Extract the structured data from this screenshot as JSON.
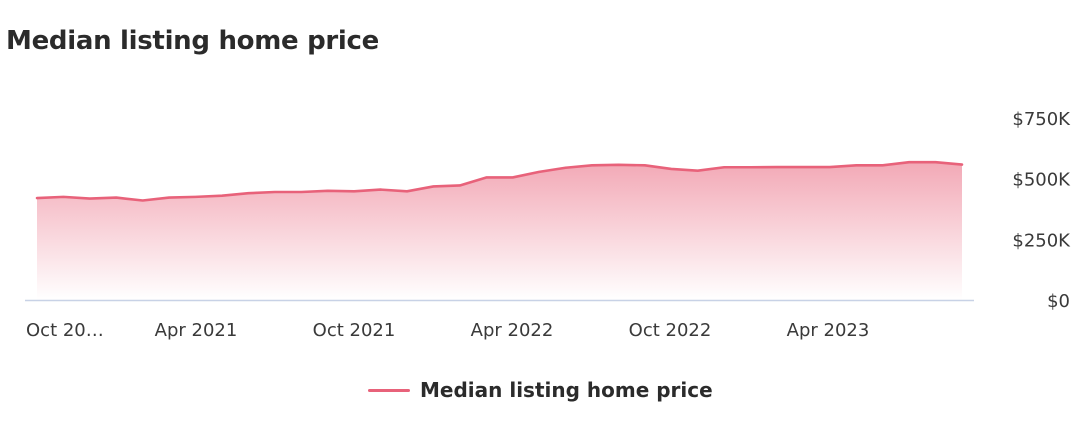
{
  "page": {
    "title": "Median listing home price"
  },
  "colors": {
    "line": "#e8627a",
    "axis": "#c8d2e6",
    "text": "#2b2b2b"
  },
  "chart_data": {
    "type": "area",
    "title": "Median listing home price",
    "xlabel": "",
    "ylabel": "",
    "ylim": [
      0,
      750000
    ],
    "y_ticks": [
      {
        "value": 750000,
        "label": "$750K"
      },
      {
        "value": 500000,
        "label": "$500K"
      },
      {
        "value": 250000,
        "label": "$250K"
      },
      {
        "value": 0,
        "label": "$0"
      }
    ],
    "x_ticks": [
      {
        "index": 0,
        "label": "Oct 20…"
      },
      {
        "index": 6,
        "label": "Apr 2021"
      },
      {
        "index": 12,
        "label": "Oct 2021"
      },
      {
        "index": 18,
        "label": "Apr 2022"
      },
      {
        "index": 24,
        "label": "Oct 2022"
      },
      {
        "index": 30,
        "label": "Apr 2023"
      }
    ],
    "grid": false,
    "legend_position": "bottom-center",
    "series": [
      {
        "name": "Median listing home price",
        "x": [
          "Oct 2020",
          "Nov 2020",
          "Dec 2020",
          "Jan 2021",
          "Feb 2021",
          "Mar 2021",
          "Apr 2021",
          "May 2021",
          "Jun 2021",
          "Jul 2021",
          "Aug 2021",
          "Sep 2021",
          "Oct 2021",
          "Nov 2021",
          "Dec 2021",
          "Jan 2022",
          "Feb 2022",
          "Mar 2022",
          "Apr 2022",
          "May 2022",
          "Jun 2022",
          "Jul 2022",
          "Aug 2022",
          "Sep 2022",
          "Oct 2022",
          "Nov 2022",
          "Dec 2022",
          "Jan 2023",
          "Feb 2023",
          "Mar 2023",
          "Apr 2023",
          "May 2023",
          "Jun 2023",
          "Jul 2023",
          "Aug 2023",
          "Sep 2023"
        ],
        "values": [
          420000,
          425000,
          418000,
          422000,
          410000,
          422000,
          425000,
          430000,
          440000,
          445000,
          445000,
          450000,
          448000,
          455000,
          448000,
          468000,
          472000,
          505000,
          505000,
          528000,
          545000,
          555000,
          557000,
          555000,
          540000,
          533000,
          547000,
          547000,
          548000,
          548000,
          548000,
          555000,
          555000,
          568000,
          568000,
          558000
        ]
      }
    ]
  },
  "legend": {
    "label": "Median listing home price"
  }
}
